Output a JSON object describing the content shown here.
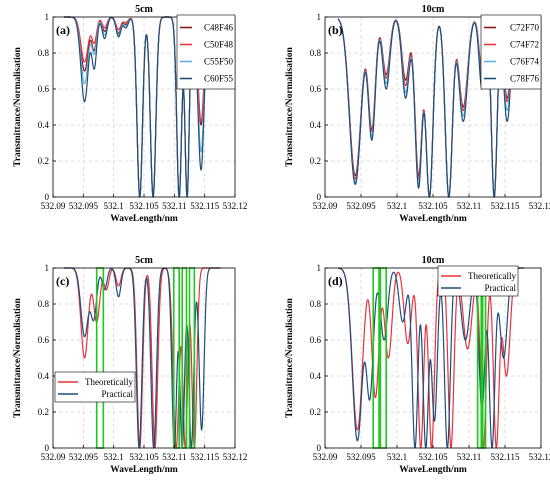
{
  "chart_data": [
    {
      "type": "line",
      "title": "5cm",
      "panel_label": "(a)",
      "xlabel": "WaveLength/nm",
      "ylabel": "Transmittance/Normalisation",
      "xlim": [
        532.09,
        532.12
      ],
      "ylim": [
        0,
        1
      ],
      "xticks": [
        "532.09",
        "532.095",
        "532.1",
        "532.105",
        "532.11",
        "532.115",
        "532.12"
      ],
      "yticks": [
        "0",
        "0.2",
        "0.4",
        "0.6",
        "0.8",
        "1"
      ],
      "grid": true,
      "legend": "top-right",
      "series": [
        {
          "name": "C48F46",
          "color": "#8b1c1c",
          "peaks": [
            {
              "c": 532.0952,
              "d": 0.3,
              "w": 0.0006
            },
            {
              "c": 532.0968,
              "d": 0.18,
              "w": 0.0004
            },
            {
              "c": 532.0985,
              "d": 0.08,
              "w": 0.0004
            },
            {
              "c": 532.1008,
              "d": 0.09,
              "w": 0.0004
            },
            {
              "c": 532.102,
              "d": 0.04,
              "w": 0.0004
            },
            {
              "c": 532.1043,
              "d": 1,
              "w": 0.00045
            },
            {
              "c": 532.1065,
              "d": 1,
              "w": 0.00045
            },
            {
              "c": 532.1108,
              "d": 1,
              "w": 0.0004
            },
            {
              "c": 532.1121,
              "d": 1,
              "w": 0.00035
            },
            {
              "c": 532.1144,
              "d": 0.6,
              "w": 0.0005
            }
          ]
        },
        {
          "name": "C50F48",
          "color": "#e8323c",
          "peaks": [
            {
              "c": 532.0952,
              "d": 0.25,
              "w": 0.0006
            },
            {
              "c": 532.0968,
              "d": 0.14,
              "w": 0.0004
            },
            {
              "c": 532.0985,
              "d": 0.06,
              "w": 0.0004
            },
            {
              "c": 532.1008,
              "d": 0.07,
              "w": 0.0004
            },
            {
              "c": 532.102,
              "d": 0.03,
              "w": 0.0004
            },
            {
              "c": 532.1043,
              "d": 1,
              "w": 0.00045
            },
            {
              "c": 532.1065,
              "d": 1,
              "w": 0.00045
            },
            {
              "c": 532.1108,
              "d": 1,
              "w": 0.0004
            },
            {
              "c": 532.1121,
              "d": 1,
              "w": 0.00035
            },
            {
              "c": 532.1144,
              "d": 0.58,
              "w": 0.0005
            }
          ]
        },
        {
          "name": "C55F50",
          "color": "#5ab4dc",
          "peaks": [
            {
              "c": 532.0952,
              "d": 0.37,
              "w": 0.0006
            },
            {
              "c": 532.0968,
              "d": 0.2,
              "w": 0.0004
            },
            {
              "c": 532.0985,
              "d": 0.1,
              "w": 0.0004
            },
            {
              "c": 532.1008,
              "d": 0.1,
              "w": 0.0004
            },
            {
              "c": 532.102,
              "d": 0.05,
              "w": 0.0004
            },
            {
              "c": 532.1043,
              "d": 1,
              "w": 0.00045
            },
            {
              "c": 532.1065,
              "d": 1,
              "w": 0.00045
            },
            {
              "c": 532.1108,
              "d": 1,
              "w": 0.0004
            },
            {
              "c": 532.1121,
              "d": 1,
              "w": 0.00035
            },
            {
              "c": 532.1144,
              "d": 0.75,
              "w": 0.0005
            }
          ]
        },
        {
          "name": "C60F55",
          "color": "#1f4e79",
          "peaks": [
            {
              "c": 532.0952,
              "d": 0.47,
              "w": 0.0006
            },
            {
              "c": 532.0968,
              "d": 0.28,
              "w": 0.0004
            },
            {
              "c": 532.0985,
              "d": 0.12,
              "w": 0.0004
            },
            {
              "c": 532.1008,
              "d": 0.11,
              "w": 0.0004
            },
            {
              "c": 532.102,
              "d": 0.06,
              "w": 0.0004
            },
            {
              "c": 532.1043,
              "d": 1,
              "w": 0.00045
            },
            {
              "c": 532.1065,
              "d": 1,
              "w": 0.00045
            },
            {
              "c": 532.1108,
              "d": 1,
              "w": 0.0004
            },
            {
              "c": 532.1121,
              "d": 1,
              "w": 0.00035
            },
            {
              "c": 532.1144,
              "d": 0.85,
              "w": 0.0005
            }
          ]
        }
      ],
      "highlight_ranges": []
    },
    {
      "type": "line",
      "title": "10cm",
      "panel_label": "(b)",
      "xlabel": "WaveLength/nm",
      "ylabel": "Transmittance/Normalisation",
      "xlim": [
        532.09,
        532.12
      ],
      "ylim": [
        0,
        1
      ],
      "xticks": [
        "532.09",
        "532.095",
        "532.1",
        "532.105",
        "532.11",
        "532.115",
        "532.12"
      ],
      "yticks": [
        "0",
        "0.2",
        "0.4",
        "0.6",
        "0.8",
        "1"
      ],
      "grid": true,
      "legend": "top-right",
      "series": [
        {
          "name": "C72F70",
          "color": "#8b1c1c",
          "peaks": [
            {
              "c": 532.0942,
              "d": 0.88,
              "w": 0.0008
            },
            {
              "c": 532.0965,
              "d": 0.62,
              "w": 0.0005
            },
            {
              "c": 532.0985,
              "d": 0.32,
              "w": 0.0005
            },
            {
              "c": 532.1012,
              "d": 0.35,
              "w": 0.0005
            },
            {
              "c": 532.103,
              "d": 0.88,
              "w": 0.0005
            },
            {
              "c": 532.1045,
              "d": 1,
              "w": 0.0005
            },
            {
              "c": 532.1072,
              "d": 1,
              "w": 0.0005
            },
            {
              "c": 532.1092,
              "d": 0.5,
              "w": 0.0006
            },
            {
              "c": 532.1118,
              "d": 0.3,
              "w": 0.0004
            },
            {
              "c": 532.1135,
              "d": 1,
              "w": 0.0004
            },
            {
              "c": 532.1153,
              "d": 0.45,
              "w": 0.0005
            }
          ]
        },
        {
          "name": "C74F72",
          "color": "#e8323c",
          "peaks": [
            {
              "c": 532.0942,
              "d": 0.9,
              "w": 0.0008
            },
            {
              "c": 532.0965,
              "d": 0.63,
              "w": 0.0005
            },
            {
              "c": 532.0985,
              "d": 0.34,
              "w": 0.0005
            },
            {
              "c": 532.1012,
              "d": 0.38,
              "w": 0.0005
            },
            {
              "c": 532.103,
              "d": 0.9,
              "w": 0.0005
            },
            {
              "c": 532.1045,
              "d": 1,
              "w": 0.0005
            },
            {
              "c": 532.1072,
              "d": 1,
              "w": 0.0005
            },
            {
              "c": 532.1092,
              "d": 0.52,
              "w": 0.0006
            },
            {
              "c": 532.1118,
              "d": 0.32,
              "w": 0.0004
            },
            {
              "c": 532.1135,
              "d": 1,
              "w": 0.0004
            },
            {
              "c": 532.1153,
              "d": 0.47,
              "w": 0.0005
            }
          ]
        },
        {
          "name": "C76F74",
          "color": "#5ab4dc",
          "peaks": [
            {
              "c": 532.0942,
              "d": 0.92,
              "w": 0.0008
            },
            {
              "c": 532.0965,
              "d": 0.66,
              "w": 0.0005
            },
            {
              "c": 532.0985,
              "d": 0.37,
              "w": 0.0005
            },
            {
              "c": 532.1012,
              "d": 0.42,
              "w": 0.0005
            },
            {
              "c": 532.103,
              "d": 0.93,
              "w": 0.0005
            },
            {
              "c": 532.1045,
              "d": 1,
              "w": 0.0005
            },
            {
              "c": 532.1072,
              "d": 1,
              "w": 0.0005
            },
            {
              "c": 532.1092,
              "d": 0.55,
              "w": 0.0006
            },
            {
              "c": 532.1118,
              "d": 0.36,
              "w": 0.0004
            },
            {
              "c": 532.1135,
              "d": 1,
              "w": 0.0004
            },
            {
              "c": 532.1153,
              "d": 0.52,
              "w": 0.0005
            }
          ]
        },
        {
          "name": "C78F76",
          "color": "#1f4e79",
          "peaks": [
            {
              "c": 532.0942,
              "d": 0.93,
              "w": 0.0008
            },
            {
              "c": 532.0965,
              "d": 0.68,
              "w": 0.0005
            },
            {
              "c": 532.0985,
              "d": 0.4,
              "w": 0.0005
            },
            {
              "c": 532.1012,
              "d": 0.45,
              "w": 0.0005
            },
            {
              "c": 532.103,
              "d": 0.95,
              "w": 0.0005
            },
            {
              "c": 532.1045,
              "d": 1,
              "w": 0.0005
            },
            {
              "c": 532.1072,
              "d": 1,
              "w": 0.0005
            },
            {
              "c": 532.1092,
              "d": 0.58,
              "w": 0.0006
            },
            {
              "c": 532.1118,
              "d": 0.4,
              "w": 0.0004
            },
            {
              "c": 532.1135,
              "d": 1,
              "w": 0.0004
            },
            {
              "c": 532.1153,
              "d": 0.58,
              "w": 0.0005
            }
          ]
        }
      ],
      "highlight_ranges": []
    },
    {
      "type": "line",
      "title": "5cm",
      "panel_label": "(c)",
      "xlabel": "WaveLength/nm",
      "ylabel": "Transmittance/Normalisation",
      "xlim": [
        532.09,
        532.12
      ],
      "ylim": [
        0,
        1
      ],
      "xticks": [
        "532.09",
        "532.095",
        "532.1",
        "532.105",
        "532.11",
        "532.115",
        "532.12"
      ],
      "yticks": [
        "0",
        "0.2",
        "0.4",
        "0.6",
        "0.8",
        "1"
      ],
      "grid": true,
      "legend": "bottom-left",
      "series": [
        {
          "name": "Theoretically",
          "color": "#e8323c",
          "peaks": [
            {
              "c": 532.0952,
              "d": 0.5,
              "w": 0.0006
            },
            {
              "c": 532.0972,
              "d": 0.3,
              "w": 0.0005
            },
            {
              "c": 532.0988,
              "d": 0.12,
              "w": 0.0004
            },
            {
              "c": 532.1008,
              "d": 0.1,
              "w": 0.0004
            },
            {
              "c": 532.1043,
              "d": 1,
              "w": 0.00045
            },
            {
              "c": 532.1068,
              "d": 1,
              "w": 0.00045
            },
            {
              "c": 532.1103,
              "d": 1,
              "w": 0.0005
            },
            {
              "c": 532.1118,
              "d": 1,
              "w": 0.0004
            },
            {
              "c": 532.1133,
              "d": 1,
              "w": 0.0004
            }
          ]
        },
        {
          "name": "Practical",
          "color": "#1f4e79",
          "peaks": [
            {
              "c": 532.0952,
              "d": 0.38,
              "w": 0.0006
            },
            {
              "c": 532.0967,
              "d": 0.28,
              "w": 0.0005
            },
            {
              "c": 532.0985,
              "d": 0.12,
              "w": 0.0004
            },
            {
              "c": 532.1008,
              "d": 0.16,
              "w": 0.0004
            },
            {
              "c": 532.1042,
              "d": 1,
              "w": 0.00045
            },
            {
              "c": 532.1066,
              "d": 1,
              "w": 0.00045
            },
            {
              "c": 532.11,
              "d": 1,
              "w": 0.0004
            },
            {
              "c": 532.1113,
              "d": 1,
              "w": 0.0004
            },
            {
              "c": 532.1128,
              "d": 1,
              "w": 0.0004
            },
            {
              "c": 532.1145,
              "d": 0.9,
              "w": 0.0004
            }
          ]
        }
      ],
      "highlight_ranges": [
        [
          532.0972,
          532.0983
        ],
        [
          532.1099,
          532.1108
        ],
        [
          532.1113,
          532.112
        ],
        [
          532.1125,
          532.1133
        ]
      ]
    },
    {
      "type": "line",
      "title": "10cm",
      "panel_label": "(d)",
      "xlabel": "WaveLength/nm",
      "ylabel": "Transmittance/Normalisation",
      "xlim": [
        532.09,
        532.12
      ],
      "ylim": [
        0,
        1
      ],
      "xticks": [
        "532.09",
        "532.095",
        "532.1",
        "532.105",
        "532.11",
        "532.115",
        "532.12"
      ],
      "yticks": [
        "0",
        "0.2",
        "0.4",
        "0.6",
        "0.8",
        "1"
      ],
      "grid": true,
      "legend": "top-right",
      "series": [
        {
          "name": "Theoretically",
          "color": "#e8323c",
          "peaks": [
            {
              "c": 532.0945,
              "d": 0.9,
              "w": 0.0007
            },
            {
              "c": 532.097,
              "d": 0.72,
              "w": 0.0005
            },
            {
              "c": 532.0988,
              "d": 0.5,
              "w": 0.0005
            },
            {
              "c": 532.1015,
              "d": 0.42,
              "w": 0.0005
            },
            {
              "c": 532.1033,
              "d": 1,
              "w": 0.0004
            },
            {
              "c": 532.1048,
              "d": 1,
              "w": 0.0004
            },
            {
              "c": 532.1075,
              "d": 1,
              "w": 0.0004
            },
            {
              "c": 532.1098,
              "d": 0.45,
              "w": 0.0006
            },
            {
              "c": 532.112,
              "d": 1,
              "w": 0.0004
            },
            {
              "c": 532.1138,
              "d": 1,
              "w": 0.0004
            },
            {
              "c": 532.1152,
              "d": 0.6,
              "w": 0.0005
            }
          ]
        },
        {
          "name": "Practical",
          "color": "#1f4e79",
          "peaks": [
            {
              "c": 532.0945,
              "d": 0.96,
              "w": 0.0007
            },
            {
              "c": 532.0962,
              "d": 0.72,
              "w": 0.0005
            },
            {
              "c": 532.0982,
              "d": 0.4,
              "w": 0.0005
            },
            {
              "c": 532.1008,
              "d": 0.3,
              "w": 0.0005
            },
            {
              "c": 532.1025,
              "d": 1,
              "w": 0.0004
            },
            {
              "c": 532.104,
              "d": 1,
              "w": 0.0004
            },
            {
              "c": 532.1052,
              "d": 0.85,
              "w": 0.0004
            },
            {
              "c": 532.107,
              "d": 1,
              "w": 0.0004
            },
            {
              "c": 532.1095,
              "d": 0.4,
              "w": 0.0006
            },
            {
              "c": 532.1118,
              "d": 0.8,
              "w": 0.0004
            },
            {
              "c": 532.1132,
              "d": 1,
              "w": 0.0004
            },
            {
              "c": 532.1148,
              "d": 0.5,
              "w": 0.0005
            }
          ]
        }
      ],
      "highlight_ranges": [
        [
          532.0967,
          532.0975
        ],
        [
          532.0977,
          532.0985
        ],
        [
          532.1112,
          532.1117
        ],
        [
          532.1119,
          532.1123
        ]
      ]
    }
  ]
}
